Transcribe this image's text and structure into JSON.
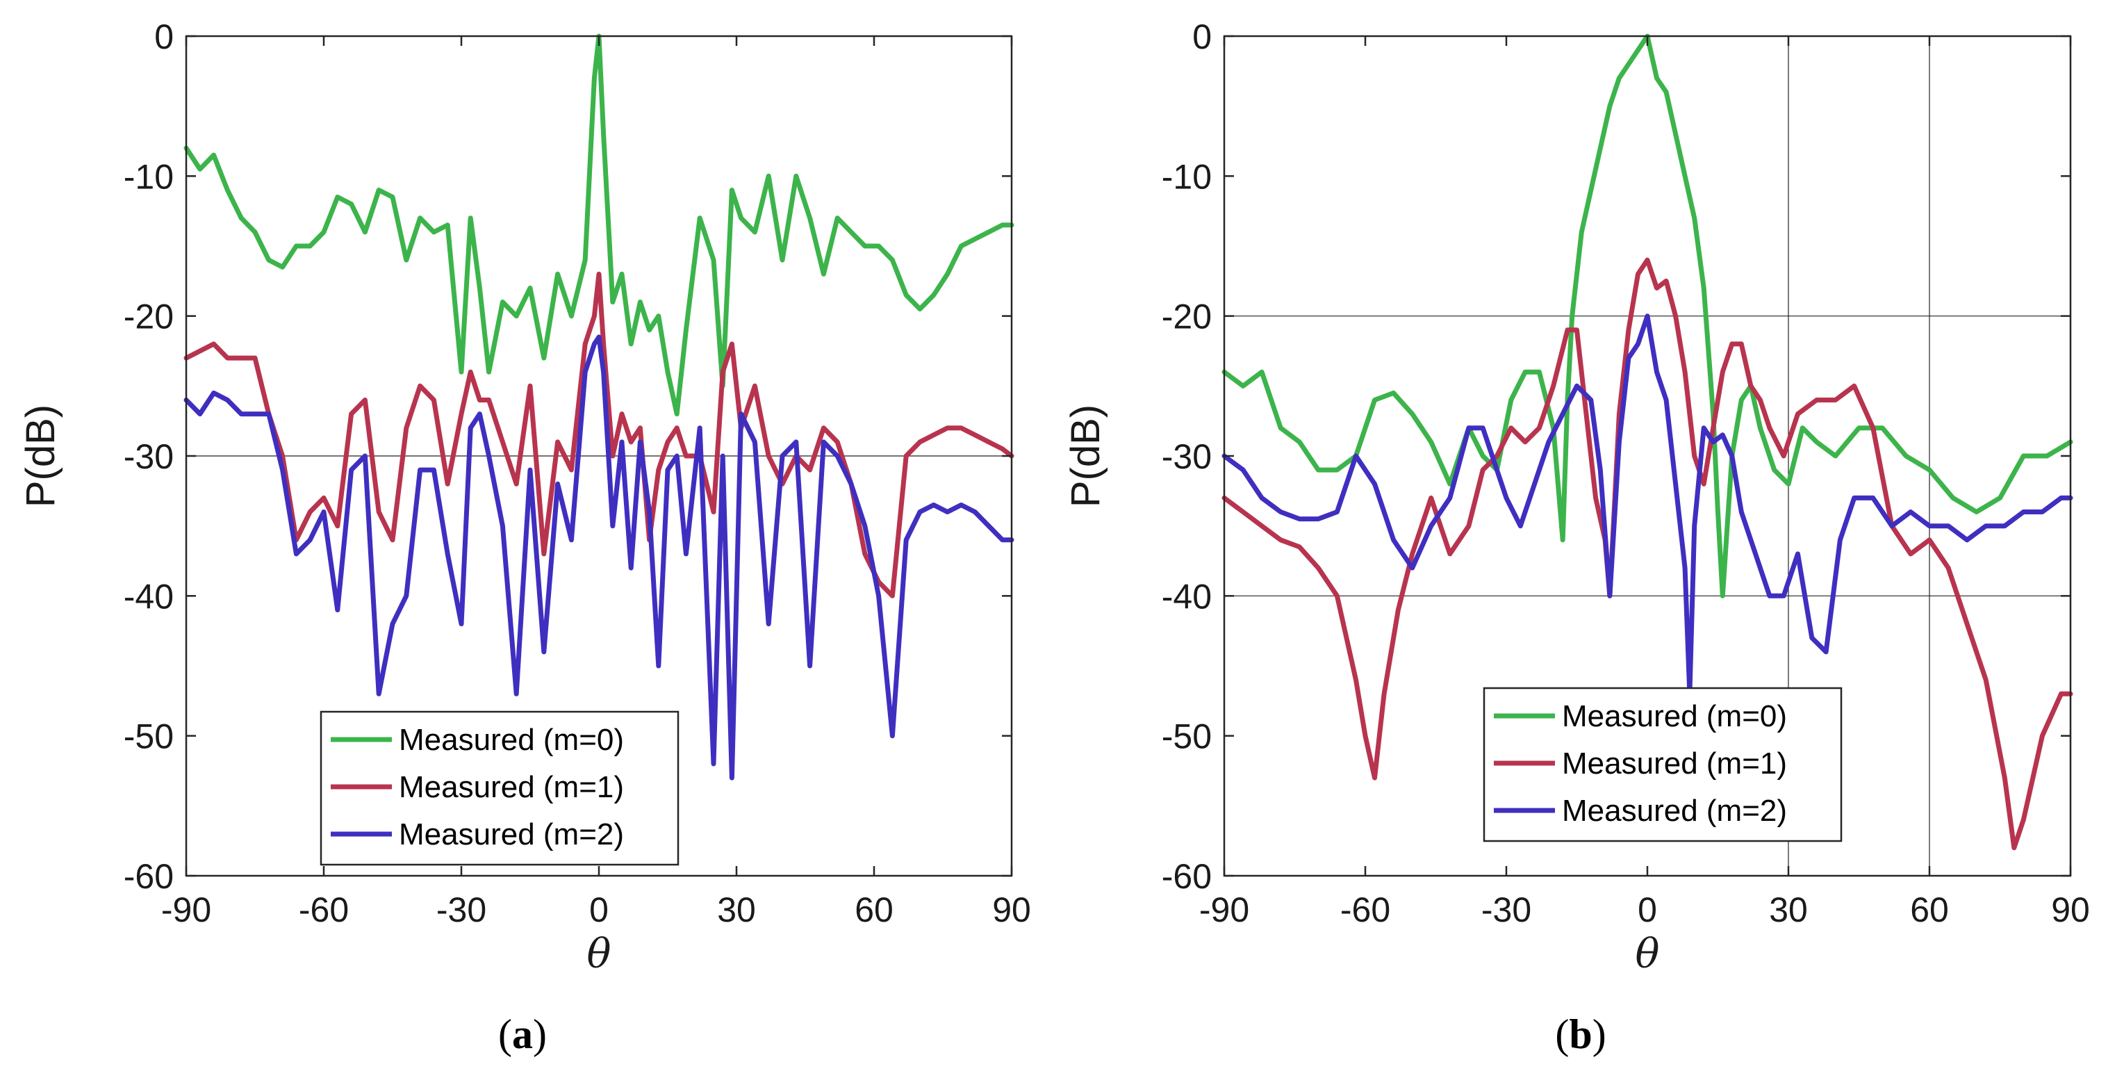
{
  "chart_data": [
    {
      "type": "line",
      "caption": "(a)",
      "caption_letter": "a",
      "xlabel": "θ",
      "ylabel": "P(dB)",
      "xlim": [
        -90,
        90
      ],
      "ylim": [
        -60,
        0
      ],
      "xticks": [
        "-90",
        "-60",
        "-30",
        "0",
        "30",
        "60",
        "90"
      ],
      "yticks": [
        "0",
        "-10",
        "-20",
        "-30",
        "-40",
        "-50",
        "-60"
      ],
      "xtick_values": [
        -90,
        -60,
        -30,
        0,
        30,
        60,
        90
      ],
      "ytick_values": [
        0,
        -10,
        -20,
        -30,
        -40,
        -50,
        -60
      ],
      "gridlines_y": [
        -30
      ],
      "gridlines_x": [],
      "legend_position": "bottom-center",
      "series": [
        {
          "name": "Measured (m=0)",
          "color": "#3cb44b",
          "x": [
            -90,
            -87,
            -84,
            -81,
            -78,
            -75,
            -72,
            -69,
            -66,
            -63,
            -60,
            -57,
            -54,
            -51,
            -48,
            -45,
            -42,
            -39,
            -36,
            -33,
            -30,
            -28,
            -26,
            -24,
            -21,
            -18,
            -15,
            -12,
            -9,
            -6,
            -3,
            -1,
            0,
            1,
            3,
            5,
            7,
            9,
            11,
            13,
            15,
            17,
            19,
            22,
            25,
            27,
            29,
            31,
            34,
            37,
            40,
            43,
            46,
            49,
            52,
            55,
            58,
            61,
            64,
            67,
            70,
            73,
            76,
            79,
            82,
            85,
            88,
            90
          ],
          "y": [
            -8,
            -9.5,
            -8.5,
            -11,
            -13,
            -14,
            -16,
            -16.5,
            -15,
            -15,
            -14,
            -11.5,
            -12,
            -14,
            -11,
            -11.5,
            -16,
            -13,
            -14,
            -13.5,
            -24,
            -13,
            -18,
            -24,
            -19,
            -20,
            -18,
            -23,
            -17,
            -20,
            -16,
            -3,
            0,
            -7,
            -19,
            -17,
            -22,
            -19,
            -21,
            -20,
            -24,
            -27,
            -21,
            -13,
            -16,
            -25,
            -11,
            -13,
            -14,
            -10,
            -16,
            -10,
            -13,
            -17,
            -13,
            -14,
            -15,
            -15,
            -16,
            -18.5,
            -19.5,
            -18.5,
            -17,
            -15,
            -14.5,
            -14,
            -13.5,
            -13.5
          ]
        },
        {
          "name": "Measured (m=1)",
          "color": "#b8344e",
          "x": [
            -90,
            -87,
            -84,
            -81,
            -78,
            -75,
            -72,
            -69,
            -66,
            -63,
            -60,
            -57,
            -54,
            -51,
            -48,
            -45,
            -42,
            -39,
            -36,
            -33,
            -30,
            -28,
            -26,
            -24,
            -21,
            -18,
            -15,
            -12,
            -9,
            -6,
            -3,
            -1,
            0,
            1,
            3,
            5,
            7,
            9,
            11,
            13,
            15,
            17,
            19,
            22,
            25,
            27,
            29,
            31,
            34,
            37,
            40,
            43,
            46,
            49,
            52,
            55,
            58,
            61,
            64,
            67,
            70,
            73,
            76,
            79,
            82,
            85,
            88,
            90
          ],
          "y": [
            -23,
            -22.5,
            -22,
            -23,
            -23,
            -23,
            -27,
            -30,
            -36,
            -34,
            -33,
            -35,
            -27,
            -26,
            -34,
            -36,
            -28,
            -25,
            -26,
            -32,
            -27,
            -24,
            -26,
            -26,
            -29,
            -32,
            -25,
            -37,
            -29,
            -31,
            -22,
            -20,
            -17,
            -22,
            -30,
            -27,
            -29,
            -28,
            -36,
            -31,
            -29,
            -28,
            -30,
            -30,
            -34,
            -24,
            -22,
            -28,
            -25,
            -30,
            -32,
            -30,
            -31,
            -28,
            -29,
            -32,
            -37,
            -39,
            -40,
            -30,
            -29,
            -28.5,
            -28,
            -28,
            -28.5,
            -29,
            -29.5,
            -30
          ]
        },
        {
          "name": "Measured (m=2)",
          "color": "#3f2fc0",
          "x": [
            -90,
            -87,
            -84,
            -81,
            -78,
            -75,
            -72,
            -69,
            -66,
            -63,
            -60,
            -57,
            -54,
            -51,
            -48,
            -45,
            -42,
            -39,
            -36,
            -33,
            -30,
            -28,
            -26,
            -24,
            -21,
            -18,
            -15,
            -12,
            -9,
            -6,
            -3,
            -1,
            0,
            1,
            3,
            5,
            7,
            9,
            11,
            13,
            15,
            17,
            19,
            22,
            25,
            27,
            29,
            31,
            34,
            37,
            40,
            43,
            46,
            49,
            52,
            55,
            58,
            61,
            64,
            67,
            70,
            73,
            76,
            79,
            82,
            85,
            88,
            90
          ],
          "y": [
            -26,
            -27,
            -25.5,
            -26,
            -27,
            -27,
            -27,
            -31,
            -37,
            -36,
            -34,
            -41,
            -31,
            -30,
            -47,
            -42,
            -40,
            -31,
            -31,
            -37,
            -42,
            -28,
            -27,
            -30,
            -35,
            -47,
            -31,
            -44,
            -32,
            -36,
            -24,
            -22,
            -21.5,
            -24,
            -35,
            -29,
            -38,
            -29,
            -34,
            -45,
            -31,
            -30,
            -37,
            -28,
            -52,
            -30,
            -53,
            -27,
            -29,
            -42,
            -30,
            -29,
            -45,
            -29,
            -30,
            -32,
            -35,
            -40,
            -50,
            -36,
            -34,
            -33.5,
            -34,
            -33.5,
            -34,
            -35,
            -36,
            -36
          ]
        }
      ]
    },
    {
      "type": "line",
      "caption": "(b)",
      "caption_letter": "b",
      "xlabel": "θ",
      "ylabel": "P(dB)",
      "xlim": [
        -90,
        90
      ],
      "ylim": [
        -60,
        0
      ],
      "xticks": [
        "-90",
        "-60",
        "-30",
        "0",
        "30",
        "60",
        "90"
      ],
      "yticks": [
        "0",
        "-10",
        "-20",
        "-30",
        "-40",
        "-50",
        "-60"
      ],
      "xtick_values": [
        -90,
        -60,
        -30,
        0,
        30,
        60,
        90
      ],
      "ytick_values": [
        0,
        -10,
        -20,
        -30,
        -40,
        -50,
        -60
      ],
      "gridlines_y": [
        -20,
        -40
      ],
      "gridlines_x": [
        30,
        60
      ],
      "legend_position": "bottom-center",
      "series": [
        {
          "name": "Measured (m=0)",
          "color": "#3cb44b",
          "x": [
            -90,
            -86,
            -82,
            -78,
            -74,
            -70,
            -66,
            -62,
            -58,
            -54,
            -50,
            -46,
            -42,
            -38,
            -35,
            -32,
            -29,
            -26,
            -23,
            -20,
            -18,
            -17,
            -16,
            -14,
            -12,
            -10,
            -8,
            -6,
            -4,
            -2,
            0,
            2,
            4,
            6,
            8,
            10,
            12,
            14,
            15,
            16,
            17,
            18,
            20,
            22,
            24,
            27,
            30,
            33,
            36,
            40,
            45,
            50,
            55,
            60,
            65,
            70,
            75,
            80,
            85,
            90
          ],
          "y": [
            -24,
            -25,
            -24,
            -28,
            -29,
            -31,
            -31,
            -30,
            -26,
            -25.5,
            -27,
            -29,
            -32,
            -28,
            -30,
            -31,
            -26,
            -24,
            -24,
            -28,
            -36,
            -26,
            -20,
            -14,
            -11,
            -8,
            -5,
            -3,
            -2,
            -1,
            0,
            -3,
            -4,
            -7,
            -10,
            -13,
            -18,
            -27,
            -34,
            -40,
            -35,
            -30,
            -26,
            -25,
            -28,
            -31,
            -32,
            -28,
            -29,
            -30,
            -28,
            -28,
            -30,
            -31,
            -33,
            -34,
            -33,
            -30,
            -30,
            -29
          ]
        },
        {
          "name": "Measured (m=1)",
          "color": "#b8344e",
          "x": [
            -90,
            -86,
            -82,
            -78,
            -74,
            -70,
            -66,
            -62,
            -60,
            -58,
            -56,
            -53,
            -50,
            -46,
            -42,
            -38,
            -35,
            -32,
            -29,
            -26,
            -23,
            -20,
            -17,
            -15,
            -13,
            -11,
            -9,
            -8,
            -6,
            -4,
            -2,
            0,
            2,
            4,
            6,
            8,
            10,
            12,
            14,
            16,
            18,
            20,
            22,
            24,
            26,
            29,
            32,
            36,
            40,
            44,
            48,
            52,
            56,
            60,
            64,
            68,
            72,
            76,
            78,
            80,
            84,
            88,
            90
          ],
          "y": [
            -33,
            -34,
            -35,
            -36,
            -36.5,
            -38,
            -40,
            -46,
            -50,
            -53,
            -47,
            -41,
            -37,
            -33,
            -37,
            -35,
            -31,
            -30,
            -28,
            -29,
            -28,
            -25,
            -21,
            -21,
            -27,
            -33,
            -36,
            -40,
            -27,
            -21,
            -17,
            -16,
            -18,
            -17.5,
            -20,
            -24,
            -30,
            -32,
            -28,
            -24,
            -22,
            -22,
            -25,
            -26,
            -28,
            -30,
            -27,
            -26,
            -26,
            -25,
            -28,
            -35,
            -37,
            -36,
            -38,
            -42,
            -46,
            -53,
            -58,
            -56,
            -50,
            -47,
            -47
          ]
        },
        {
          "name": "Measured (m=2)",
          "color": "#3f2fc0",
          "x": [
            -90,
            -86,
            -82,
            -78,
            -74,
            -70,
            -66,
            -62,
            -58,
            -54,
            -50,
            -46,
            -42,
            -38,
            -35,
            -33,
            -30,
            -27,
            -24,
            -21,
            -18,
            -15,
            -12,
            -10,
            -8,
            -6,
            -4,
            -2,
            0,
            2,
            4,
            6,
            8,
            9,
            10,
            12,
            14,
            16,
            18,
            20,
            23,
            26,
            29,
            32,
            35,
            38,
            41,
            44,
            48,
            52,
            56,
            60,
            64,
            68,
            72,
            76,
            80,
            84,
            88,
            90
          ],
          "y": [
            -30,
            -31,
            -33,
            -34,
            -34.5,
            -34.5,
            -34,
            -30,
            -32,
            -36,
            -38,
            -35,
            -33,
            -28,
            -28,
            -30,
            -33,
            -35,
            -32,
            -29,
            -27,
            -25,
            -26,
            -31,
            -40,
            -29,
            -23,
            -22,
            -20,
            -24,
            -26,
            -32,
            -38,
            -47,
            -35,
            -28,
            -29,
            -28.5,
            -30,
            -34,
            -37,
            -40,
            -40,
            -37,
            -43,
            -44,
            -36,
            -33,
            -33,
            -35,
            -34,
            -35,
            -35,
            -36,
            -35,
            -35,
            -34,
            -34,
            -33,
            -33
          ]
        }
      ]
    }
  ]
}
